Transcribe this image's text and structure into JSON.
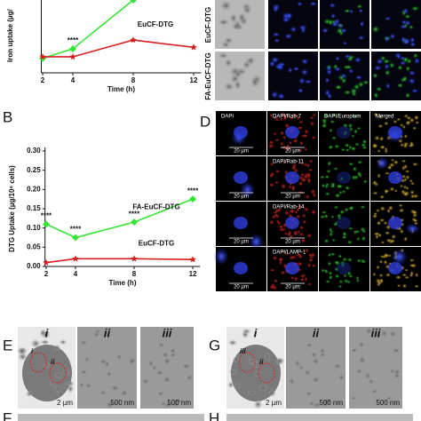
{
  "chart_data": [
    {
      "type": "line",
      "y_label": "Iron uptake (µg/",
      "x_label": "Time (h)",
      "x": [
        2,
        4,
        8,
        12
      ],
      "xlim": [
        1.5,
        12.5
      ],
      "xticks": [
        2,
        4,
        8,
        12
      ],
      "ylim": [
        0,
        1
      ],
      "series": [
        {
          "color": "#33e633",
          "marker": "diamond",
          "values": [
            0.2,
            0.33,
            1.0,
            null
          ]
        },
        {
          "name": "EuCF-DTG",
          "color": "#d42020",
          "marker": "star",
          "values": [
            0.22,
            0.22,
            0.45,
            0.35
          ]
        }
      ],
      "annotations": [
        {
          "text": "****",
          "x": 4
        }
      ]
    },
    {
      "type": "line",
      "y_label": "DTG Uptake (µg/10⁶ cells)",
      "x_label": "Time (h)",
      "x": [
        2,
        4,
        8,
        12
      ],
      "xlim": [
        1.5,
        12.5
      ],
      "xticks": [
        2,
        4,
        8,
        12
      ],
      "ylim": [
        0,
        0.3
      ],
      "yticks": [
        {
          "value": 0,
          "label": "0.00"
        },
        {
          "value": 0.05,
          "label": "0.05"
        },
        {
          "value": 0.1,
          "label": "0.10"
        },
        {
          "value": 0.15,
          "label": "0.15"
        },
        {
          "value": 0.2,
          "label": "0.20"
        },
        {
          "value": 0.25,
          "label": "0.25"
        },
        {
          "value": 0.3,
          "label": "0.30"
        }
      ],
      "series": [
        {
          "name": "FA-EuCF-DTG",
          "color": "#33e633",
          "marker": "diamond",
          "values": [
            0.11,
            0.075,
            0.115,
            0.175
          ]
        },
        {
          "name": "EuCF-DTG",
          "color": "#d42020",
          "marker": "star",
          "values": [
            0.01,
            0.02,
            0.02,
            0.018
          ]
        }
      ],
      "annotations": [
        {
          "text": "****",
          "x": 2
        },
        {
          "text": "****",
          "x": 4
        },
        {
          "text": "****",
          "x": 8
        },
        {
          "text": "****",
          "x": 12
        }
      ]
    }
  ],
  "panels": {
    "letters": [
      "B",
      "D",
      "E",
      "G",
      "F",
      "H"
    ],
    "top_rows": [
      "EuCF-DTG",
      "FA-EuCF-DTG"
    ],
    "d_headers": [
      "DAPI",
      "DAPI/Rab-7",
      "DAPI/Europium",
      "Merged"
    ],
    "d_rows": [
      "DAPI/Rab-11",
      "DAPI/Rab-14",
      "DAPI/LAMP-1"
    ],
    "d_scale": "20 µm",
    "em_cols": [
      "i",
      "ii",
      "iii"
    ],
    "em_scale_low": "2 µm",
    "em_scale_high": "500 nm",
    "e_regions": [
      "i",
      "ii"
    ],
    "g_regions": [
      "iii",
      "ii"
    ]
  }
}
